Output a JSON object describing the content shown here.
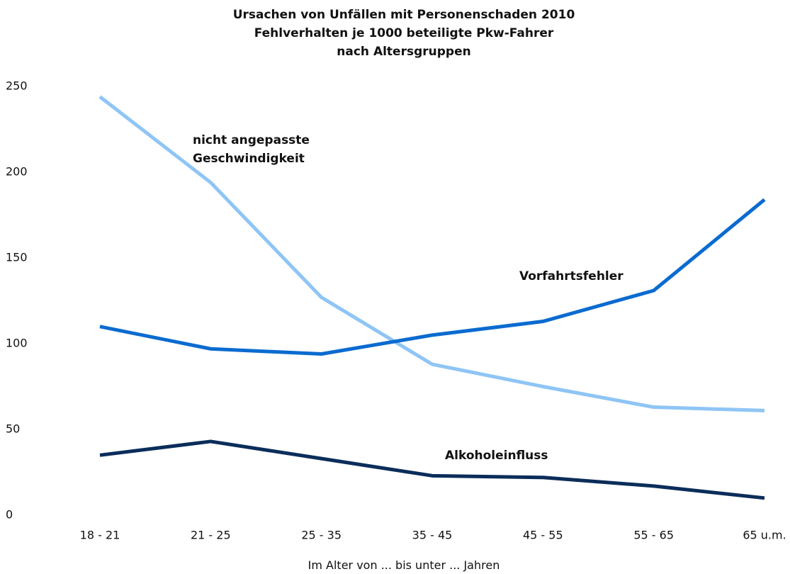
{
  "chart_data": {
    "type": "line",
    "title": "Ursachen von Unfällen mit Personenschaden 2010\nFehlverhalten je 1000 beteiligte Pkw-Fahrer\nnach Altersgruppen",
    "x_label": "Im Alter von ... bis unter ... Jahren",
    "categories": [
      "18 - 21",
      "21 - 25",
      "25 - 35",
      "35 - 45",
      "45 - 55",
      "55 - 65",
      "65 u.m."
    ],
    "series": [
      {
        "name": "nicht angepasste\nGeschwindigkeit",
        "color": "#8ec5f5",
        "values": [
          244,
          194,
          127,
          88,
          75,
          63,
          61
        ]
      },
      {
        "name": "Vorfahrtsfehler",
        "color": "#0a6bd0",
        "values": [
          110,
          97,
          94,
          105,
          113,
          131,
          184
        ]
      },
      {
        "name": "Alkoholeinfluss",
        "color": "#0b2d5a",
        "values": [
          35,
          43,
          33,
          23,
          22,
          17,
          10
        ]
      }
    ],
    "ylim": [
      0,
      250
    ],
    "yticks": [
      0,
      50,
      100,
      150,
      200,
      250
    ],
    "grid": false
  }
}
